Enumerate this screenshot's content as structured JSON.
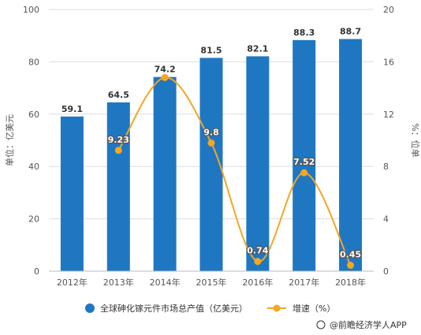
{
  "chart_data": {
    "type": "bar",
    "categories": [
      "2012年",
      "2013年",
      "2014年",
      "2015年",
      "2016年",
      "2017年",
      "2018年"
    ],
    "series": [
      {
        "name": "全球砷化镓元件市场总产值（亿美元）",
        "type": "bar",
        "axis": "left",
        "values": [
          59.1,
          64.5,
          74.2,
          81.5,
          82.1,
          88.3,
          88.7
        ],
        "color": "#1f77c2"
      },
      {
        "name": "增速（%）",
        "type": "line",
        "axis": "right",
        "values_labels": [
          "",
          "9.23",
          "",
          "9.8",
          "0.74",
          "7.52",
          "0.45"
        ],
        "values": [
          null,
          9.23,
          14.8,
          9.8,
          0.74,
          7.52,
          0.45
        ],
        "color": "#f5a623"
      }
    ],
    "ylabel": "单位：亿美元",
    "y2label": "%：位单",
    "ylim": [
      0,
      100
    ],
    "y2lim": [
      0,
      20
    ],
    "yticks": [
      "0",
      "20",
      "40",
      "60",
      "80",
      "100"
    ],
    "y2ticks": [
      "0",
      "4",
      "8",
      "12",
      "16",
      "20"
    ],
    "grid": true,
    "legend_position": "bottom"
  },
  "source": {
    "icon": "copyright-icon",
    "text": "@前瞻经济学人APP"
  },
  "colors": {
    "bar": "#1f77c2",
    "line": "#f5a623",
    "grid": "#dddddd"
  }
}
